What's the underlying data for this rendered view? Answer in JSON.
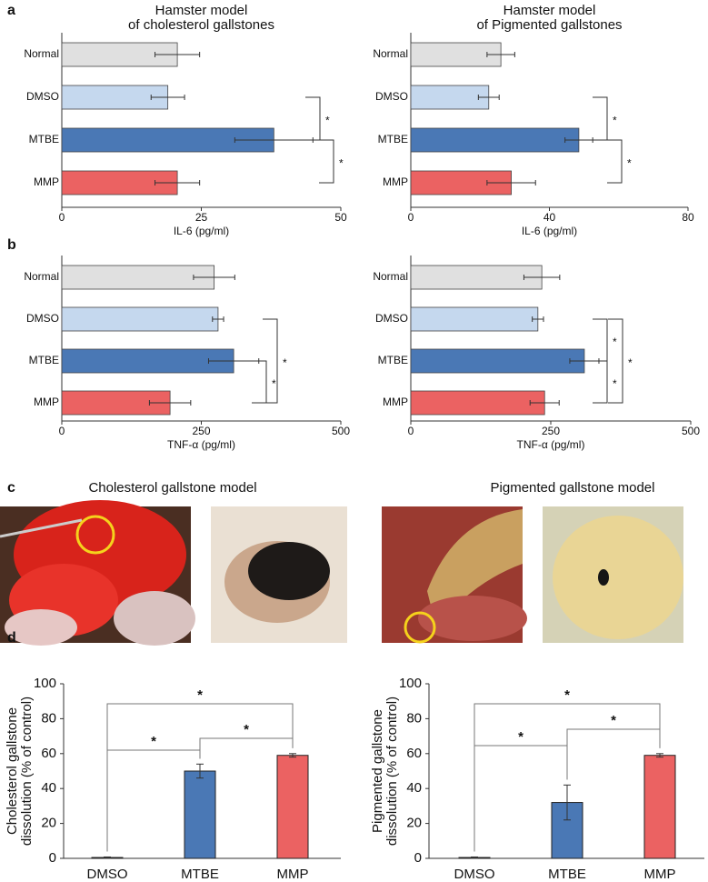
{
  "chart_data": [
    {
      "type": "hbar",
      "panel": "a",
      "title": [
        "Hamster model",
        "of cholesterol gallstones"
      ],
      "categories": [
        "Normal",
        "DMSO",
        "MTBE",
        "MMP"
      ],
      "values": [
        20.7,
        19,
        38,
        20.7
      ],
      "errors": [
        4,
        3,
        7,
        4
      ],
      "colors": [
        "#e0e0e0",
        "#c5d8ee",
        "#4a78b5",
        "#eb6262"
      ],
      "xlabel": "IL-6 (pg/ml)",
      "xlim": [
        0,
        50
      ],
      "xticks": [
        0,
        25,
        50
      ],
      "annotations": [
        {
          "between": [
            1,
            2
          ],
          "label": "*"
        },
        {
          "between": [
            2,
            3
          ],
          "label": "*"
        }
      ]
    },
    {
      "type": "hbar",
      "title": [
        "Hamster model",
        "of Pigmented gallstones"
      ],
      "categories": [
        "Normal",
        "DMSO",
        "MTBE",
        "MMP"
      ],
      "values": [
        26,
        22.5,
        48.5,
        29
      ],
      "errors": [
        4,
        3,
        4,
        7
      ],
      "colors": [
        "#e0e0e0",
        "#c5d8ee",
        "#4a78b5",
        "#eb6262"
      ],
      "xlabel": "IL-6 (pg/ml)",
      "xlim": [
        0,
        80
      ],
      "xticks": [
        0,
        40,
        80
      ],
      "annotations": [
        {
          "between": [
            1,
            2
          ],
          "label": "*"
        },
        {
          "between": [
            2,
            3
          ],
          "label": "*"
        }
      ]
    },
    {
      "type": "hbar",
      "panel": "b",
      "categories": [
        "Normal",
        "DMSO",
        "MTBE",
        "MMP"
      ],
      "values": [
        273,
        280,
        308,
        194
      ],
      "errors": [
        37,
        10,
        45,
        37
      ],
      "colors": [
        "#e0e0e0",
        "#c5d8ee",
        "#4a78b5",
        "#eb6262"
      ],
      "xlabel": "TNF-α (pg/ml)",
      "xlim": [
        0,
        500
      ],
      "xticks": [
        0,
        250,
        500
      ],
      "annotations": [
        {
          "between": [
            2,
            3
          ],
          "label": "*"
        },
        {
          "between": [
            1,
            3
          ],
          "label": "*"
        }
      ]
    },
    {
      "type": "hbar",
      "categories": [
        "Normal",
        "DMSO",
        "MTBE",
        "MMP"
      ],
      "values": [
        234,
        227,
        310,
        239
      ],
      "errors": [
        32,
        10,
        26,
        26
      ],
      "colors": [
        "#e0e0e0",
        "#c5d8ee",
        "#4a78b5",
        "#eb6262"
      ],
      "xlabel": "TNF-α (pg/ml)",
      "xlim": [
        0,
        500
      ],
      "xticks": [
        0,
        250,
        500
      ],
      "annotations": [
        {
          "between": [
            1,
            2
          ],
          "label": "*"
        },
        {
          "between": [
            2,
            3
          ],
          "label": "*"
        },
        {
          "between": [
            1,
            3
          ],
          "label": "*"
        }
      ]
    },
    {
      "type": "vbar",
      "panel": "d",
      "categories": [
        "DMSO",
        "MTBE",
        "MMP"
      ],
      "values": [
        0.5,
        50,
        59
      ],
      "errors": [
        0.3,
        4,
        1
      ],
      "colors": [
        "#c5d8ee",
        "#4a78b5",
        "#eb6262"
      ],
      "ylabel": [
        "Cholesterol gallstone",
        "dissolution (% of control)"
      ],
      "ylim": [
        0,
        100
      ],
      "yticks": [
        0,
        20,
        40,
        60,
        80,
        100
      ],
      "annotations": [
        {
          "between": [
            0,
            1
          ],
          "label": "*"
        },
        {
          "between": [
            1,
            2
          ],
          "label": "*"
        },
        {
          "between": [
            0,
            2
          ],
          "label": "*"
        }
      ]
    },
    {
      "type": "vbar",
      "categories": [
        "DMSO",
        "MTBE",
        "MMP"
      ],
      "values": [
        0.5,
        32,
        59
      ],
      "errors": [
        0.3,
        10,
        1
      ],
      "colors": [
        "#c5d8ee",
        "#4a78b5",
        "#eb6262"
      ],
      "ylabel": [
        "Pigmented gallstone",
        "dissolution (% of control)"
      ],
      "ylim": [
        0,
        100
      ],
      "yticks": [
        0,
        20,
        40,
        60,
        80,
        100
      ],
      "annotations": [
        {
          "between": [
            0,
            1
          ],
          "label": "*"
        },
        {
          "between": [
            1,
            2
          ],
          "label": "*"
        },
        {
          "between": [
            0,
            2
          ],
          "label": "*"
        }
      ]
    }
  ],
  "panel_c": {
    "label": "c",
    "titles": [
      "Cholesterol gallstone model",
      "Pigmented gallstone model"
    ]
  }
}
